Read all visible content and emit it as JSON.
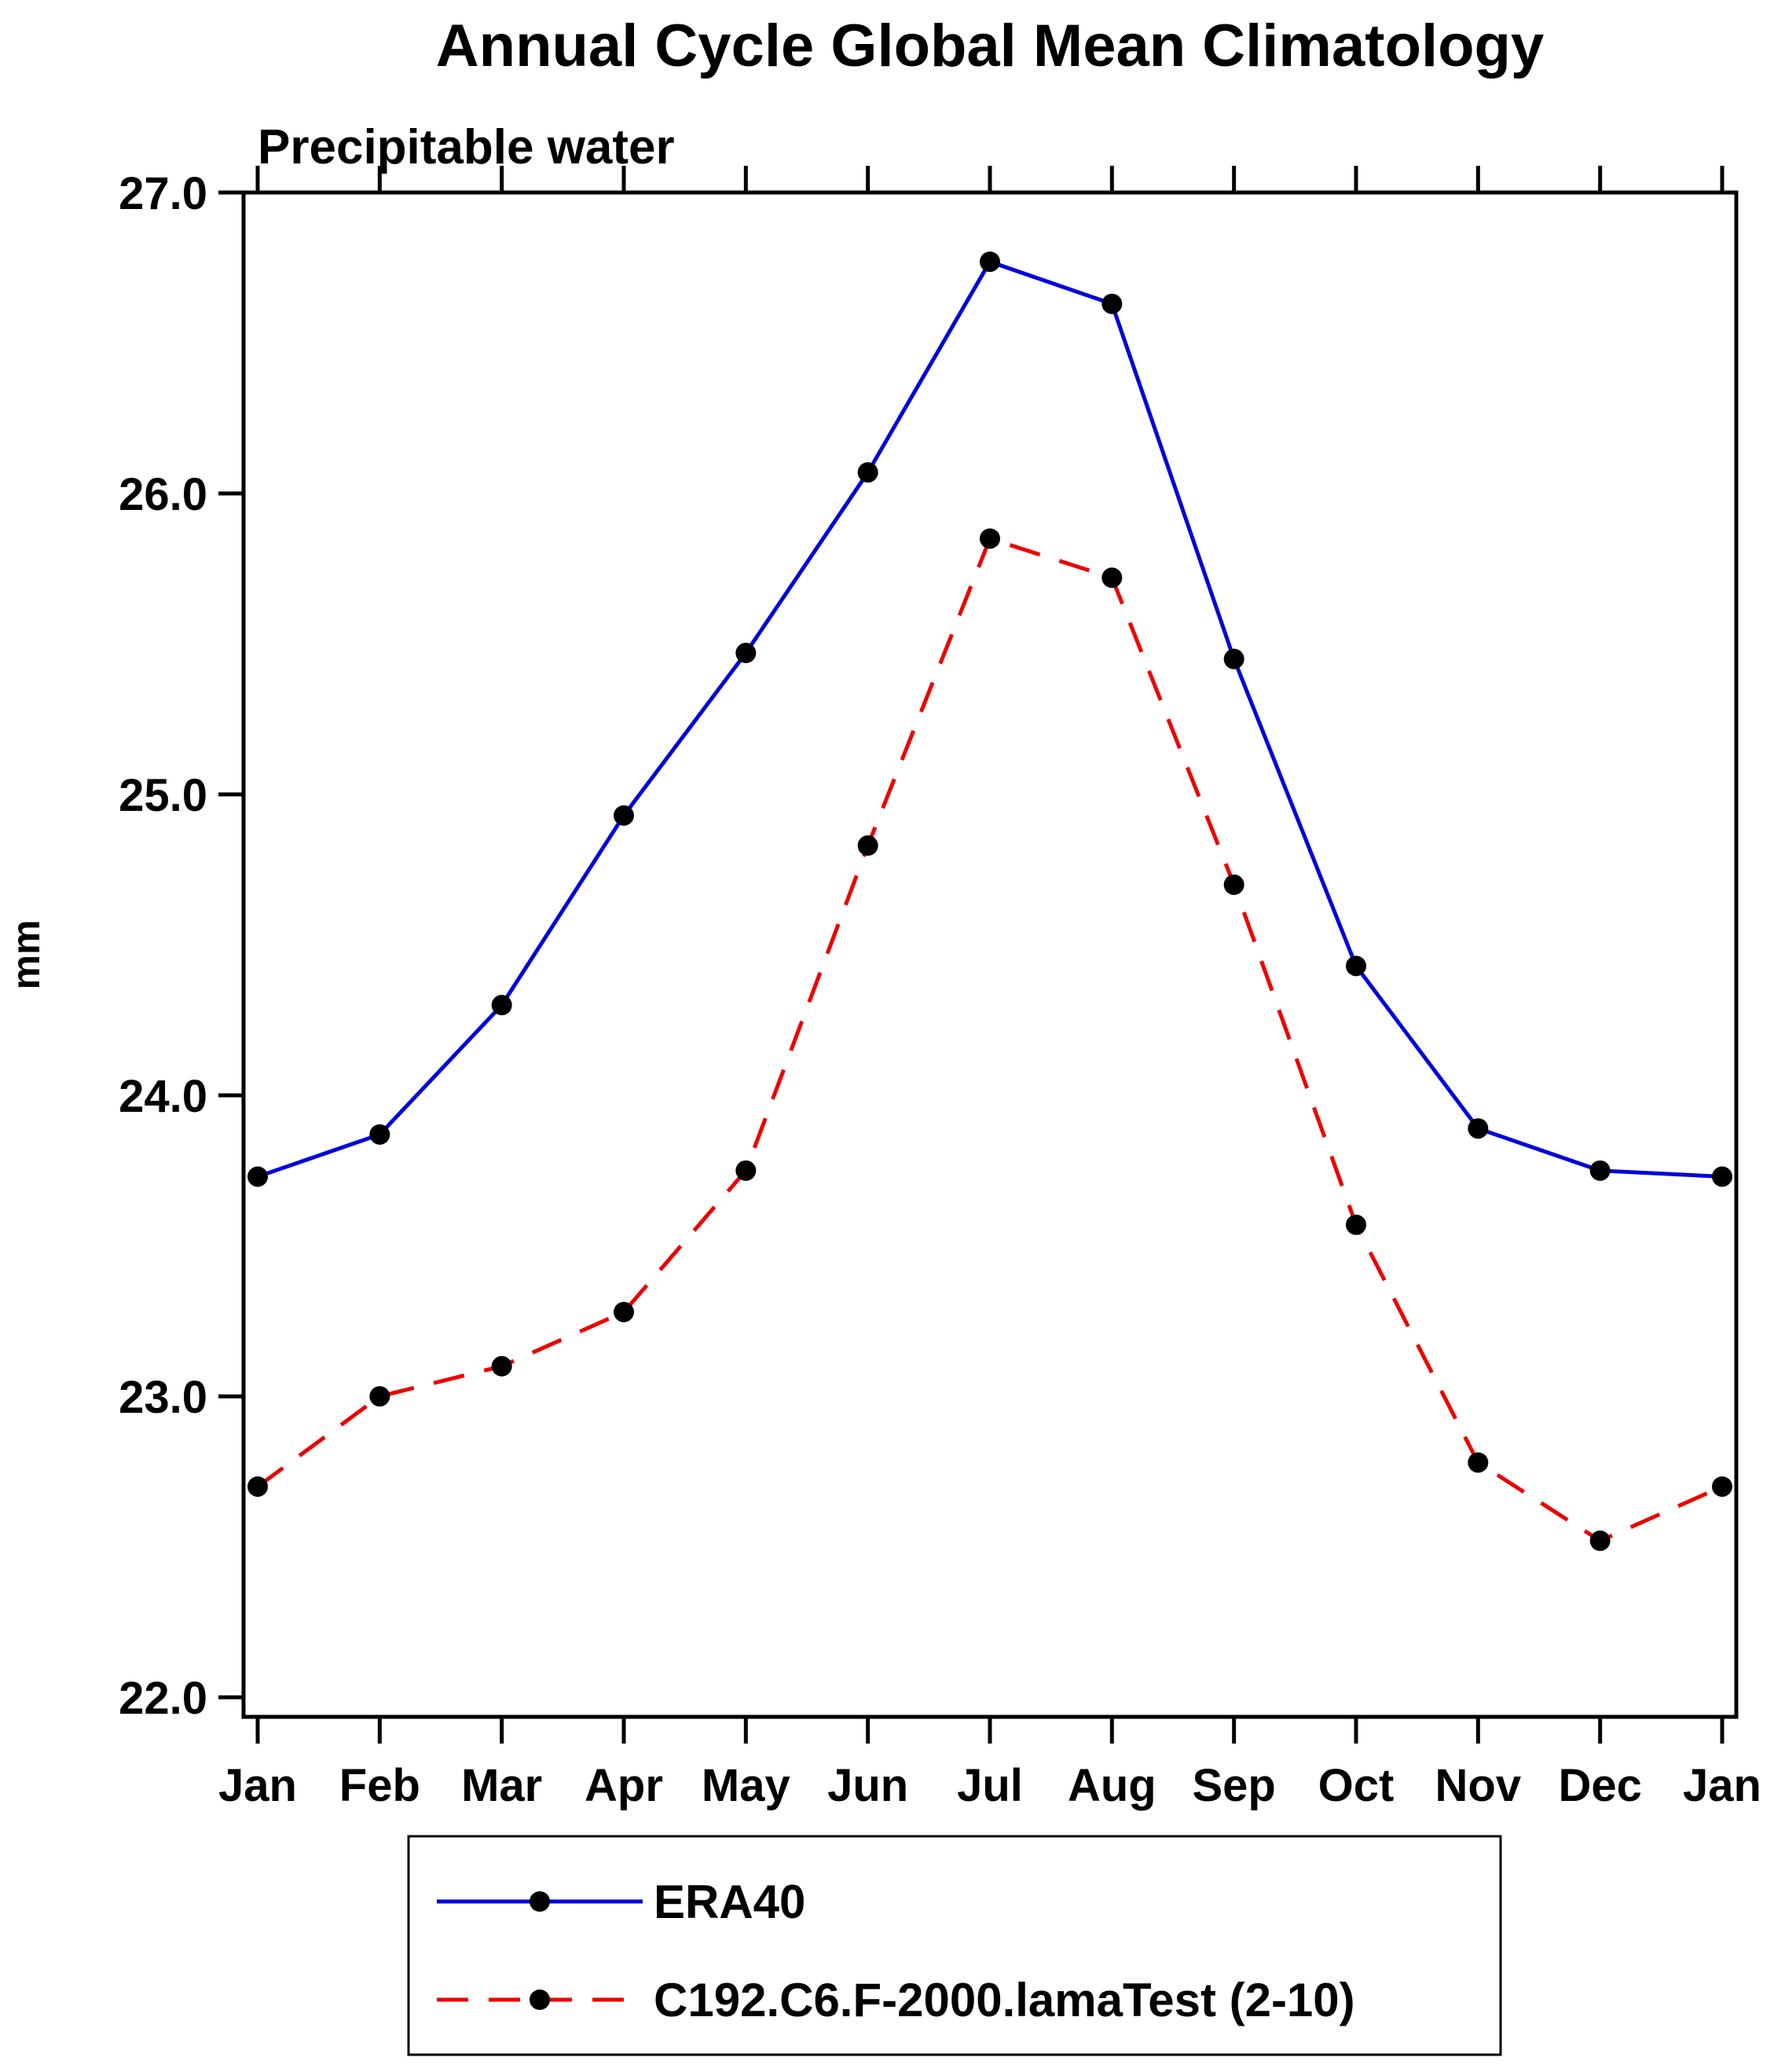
{
  "page": {
    "title": "Annual Cycle Global Mean Climatology",
    "subtitle": "Precipitable water",
    "ylabel": "mm"
  },
  "chart_data": {
    "type": "line",
    "title": "Annual Cycle Global Mean Climatology",
    "subtitle": "Precipitable water",
    "xlabel": "",
    "ylabel": "mm",
    "x_tick_labels": [
      "Jan",
      "Feb",
      "Mar",
      "Apr",
      "May",
      "Jun",
      "Jul",
      "Aug",
      "Sep",
      "Oct",
      "Nov",
      "Dec",
      "Jan"
    ],
    "y_ticks": [
      22.0,
      23.0,
      24.0,
      25.0,
      26.0,
      27.0
    ],
    "y_tick_labels": [
      "22.0",
      "23.0",
      "24.0",
      "25.0",
      "26.0",
      "27.0"
    ],
    "ylim": [
      21.935,
      27.0
    ],
    "grid": false,
    "legend_position": "bottom",
    "colors": {
      "axis": "#000000",
      "marker": "#000000",
      "series1": "#0000dd",
      "series2": "#ee0000"
    },
    "series": [
      {
        "name": "ERA40",
        "color": "#0000dd",
        "line_style": "solid",
        "marker": "circle",
        "marker_color": "#000000",
        "values": [
          23.73,
          23.87,
          24.3,
          24.93,
          25.47,
          26.07,
          26.77,
          26.63,
          25.45,
          24.43,
          23.89,
          23.75,
          23.73
        ]
      },
      {
        "name": "C192.C6.F-2000.lamaTest (2-10)",
        "color": "#ee0000",
        "line_style": "dashed",
        "marker": "circle",
        "marker_color": "#000000",
        "values": [
          22.7,
          23.0,
          23.1,
          23.28,
          23.75,
          24.83,
          25.85,
          25.72,
          24.7,
          23.57,
          22.78,
          22.52,
          22.7
        ]
      }
    ]
  }
}
